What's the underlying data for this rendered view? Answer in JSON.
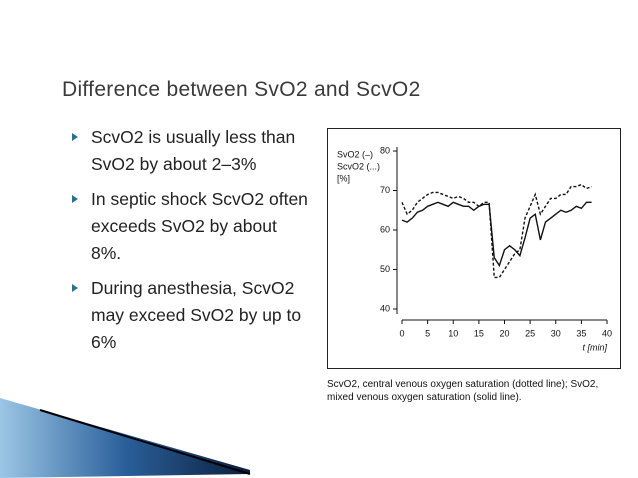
{
  "title": "Difference between SvO2 and ScvO2",
  "bullets": [
    "ScvO2 is usually less than SvO2 by about 2–3%",
    "In septic shock ScvO2 often exceeds SvO2 by about 8%.",
    "During anesthesia, ScvO2 may exceed SvO2 by up to 6%"
  ],
  "chart_data": {
    "type": "line",
    "y_label": [
      "SvO2 (–)",
      "ScvO2 (...)",
      "[%]"
    ],
    "x_label": "t [min]",
    "x": [
      0,
      1,
      2,
      3,
      4,
      5,
      6,
      7,
      8,
      9,
      10,
      11,
      12,
      13,
      14,
      15,
      16,
      17,
      18,
      19,
      20,
      21,
      22,
      23,
      24,
      25,
      26,
      27,
      28,
      29,
      30,
      31,
      32,
      33,
      34,
      35,
      36,
      37
    ],
    "series": [
      {
        "name": "SvO2",
        "color": "#111111",
        "style": "solid",
        "values": [
          62.5,
          62,
          63,
          64.5,
          65,
          66,
          66.5,
          67,
          66.5,
          66,
          67,
          66.5,
          66,
          66,
          65,
          66,
          66.5,
          66.5,
          53,
          51,
          55,
          56,
          55,
          53.5,
          58,
          63,
          64,
          57.5,
          62,
          63,
          64,
          65,
          64.5,
          65,
          66,
          65.5,
          67,
          67
        ]
      },
      {
        "name": "ScvO2",
        "color": "#111111",
        "style": "dashed",
        "values": [
          67,
          64,
          65,
          67,
          68,
          69,
          69.5,
          69.5,
          69,
          68.5,
          68,
          68.5,
          68,
          67,
          67,
          66,
          67,
          67,
          48,
          48,
          50,
          52,
          54,
          55,
          63,
          66,
          69,
          64,
          66,
          68,
          68,
          69,
          69,
          71,
          71,
          71.5,
          70.5,
          71
        ]
      }
    ],
    "xlim": [
      0,
      40
    ],
    "xticks": [
      0,
      5,
      10,
      15,
      20,
      25,
      30,
      35,
      40
    ],
    "ylim": [
      40,
      80
    ],
    "yticks": [
      40,
      50,
      60,
      70,
      80
    ]
  },
  "caption": "ScvO2, central venous oxygen saturation (dotted line); SvO2, mixed venous oxygen saturation (solid line)."
}
